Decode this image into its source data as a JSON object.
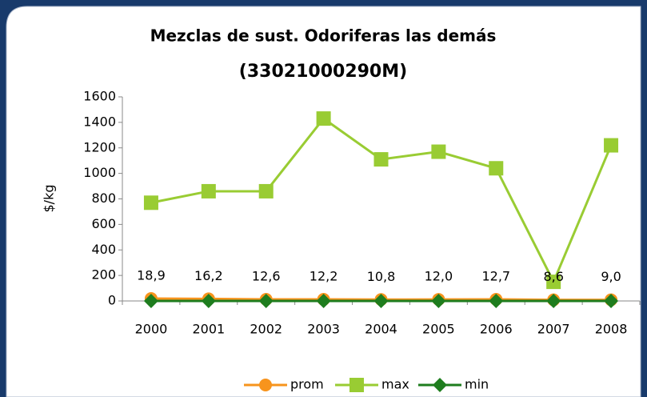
{
  "chart_data": {
    "type": "line",
    "title": "Mezclas de sust. Odoriferas las demás",
    "subtitle": "(33021000290M)",
    "y_label": "$/kg",
    "categories": [
      "2000",
      "2001",
      "2002",
      "2003",
      "2004",
      "2005",
      "2006",
      "2007",
      "2008"
    ],
    "series": [
      {
        "name": "prom",
        "color": "#f7941d",
        "marker": "circle",
        "values": [
          18.9,
          16.2,
          12.6,
          12.2,
          10.8,
          12.0,
          12.7,
          8.6,
          9.0
        ],
        "value_labels": [
          "18,9",
          "16,2",
          "12,6",
          "12,2",
          "10,8",
          "12,0",
          "12,7",
          "8,6",
          "9,0"
        ]
      },
      {
        "name": "max",
        "color": "#99cc33",
        "marker": "square",
        "values": [
          770,
          860,
          860,
          1430,
          1110,
          1170,
          1040,
          150,
          1220
        ]
      },
      {
        "name": "min",
        "color": "#1e7d1e",
        "marker": "diamond",
        "values": [
          0,
          0,
          0,
          0,
          0,
          0,
          0,
          0,
          0
        ]
      }
    ],
    "ylim": [
      0,
      1600
    ],
    "yticks": [
      0,
      200,
      400,
      600,
      800,
      1000,
      1200,
      1400,
      1600
    ],
    "legend": "bottom"
  }
}
